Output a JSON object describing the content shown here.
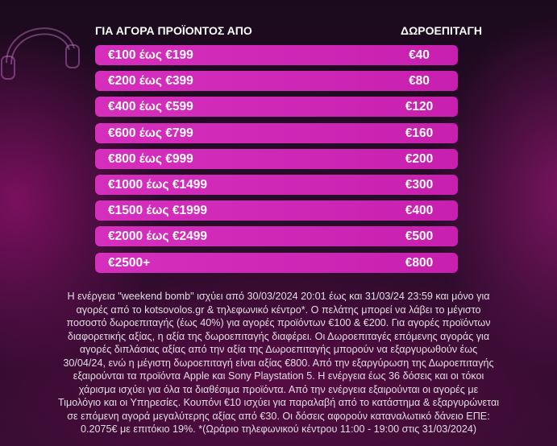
{
  "header": {
    "left": "ΓΙΑ ΑΓΟΡΑ ΠΡΟΪΟΝΤΟΣ ΑΠΟ",
    "right": "ΔΩΡΟΕΠΙΤΑΓΗ"
  },
  "table": {
    "rows": [
      [
        "€100 έως €199",
        "€40"
      ],
      [
        "€200 έως €399",
        "€80"
      ],
      [
        "€400 έως €599",
        "€120"
      ],
      [
        "€600 έως €799",
        "€160"
      ],
      [
        "€800 έως €999",
        "€200"
      ],
      [
        "€1000 έως €1499",
        "€300"
      ],
      [
        "€1500 έως €1999",
        "€400"
      ],
      [
        "€2000 έως €2499",
        "€500"
      ],
      [
        "€2500+",
        "€800"
      ]
    ]
  },
  "footer": {
    "lines": [
      "Η ενέργεια \"weekend bomb\" ισχύει από 30/03/2024 20:01 έως και 31/03/24 23:59 και μόνο για",
      "αγορές από το kotsovolos.gr & τηλεφωνικό κέντρο*. Ο πελάτης μπορεί να λάβει το μέγιστο",
      "ποσοστό δωροεπιταγής (έως 40%) για αγορές προϊόντων €100 & €200. Για αγορές προϊόντων",
      "διαφορετικής αξίας, η αξία της δωροεπιταγής διαφέρει. Οι Δωροεπιταγές επόμενης αγοράς για",
      "αγορές διπλάσιας αξίας από την αξία της Δωροεπιταγής μπορούν να εξαργυρωθούν έως",
      "30/04/24, ενώ η μέγιστη δωροεπιταγή είναι αξίας €800. Από την εξαργύρωση της Δωροεπιταγής",
      "εξαιρούνται τα προϊόντα Apple και Sony Playstation 5. Η ενέργεια έως 36 δόσεις και οι τόκοι",
      "χάρισμα ισχύει για όλα τα διαθέσιμα προϊόντα. Από την ενέργεια εξαιρούνται οι αγορές με",
      "Τιμολόγιο και οι Υπηρεσίες. Κουπόνι €10 ισχύει για παραλαβή από το κατάστημα & εξαργυρώνεται",
      "σε επόμενη αγορά μεγαλύτερης αξίας από €30.  Οι δόσεις αφορούν καταναλωτικό δάνειο ΕΠΕ:",
      "0.2075€ με επιτόκιο 19%. *(Ωράριο τηλεφωνικού κέντρου 11:00 - 19:00 στις 31/03/2024)"
    ]
  }
}
